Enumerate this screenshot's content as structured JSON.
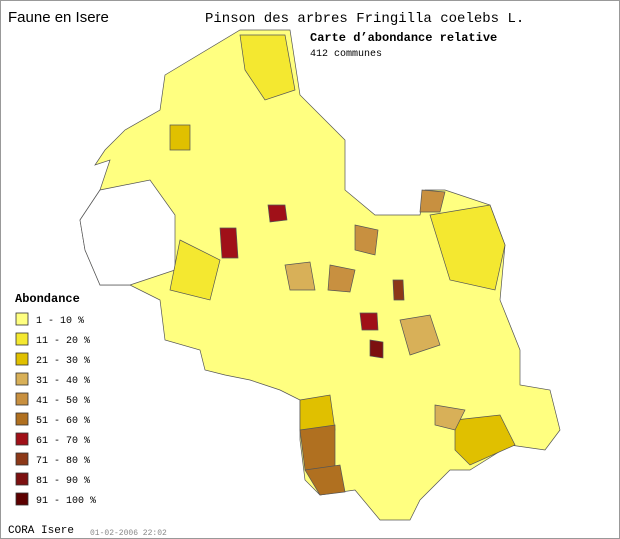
{
  "header": {
    "site": "Faune en Isere",
    "species": "Pinson des arbres  Fringilla coelebs L.",
    "map_title": "Carte d’abondance relative",
    "count": "412 communes"
  },
  "legend": {
    "title": "Abondance",
    "items": [
      {
        "label": "1 - 10 %",
        "color": "#ffff80"
      },
      {
        "label": "11 - 20 %",
        "color": "#f4e830"
      },
      {
        "label": "21 - 30 %",
        "color": "#e0c000"
      },
      {
        "label": "31 - 40 %",
        "color": "#d8b058"
      },
      {
        "label": "41 - 50 %",
        "color": "#c89040"
      },
      {
        "label": "51 - 60 %",
        "color": "#b07020"
      },
      {
        "label": "61 - 70 %",
        "color": "#a01018"
      },
      {
        "label": "71 - 80 %",
        "color": "#8c3818"
      },
      {
        "label": "81 - 90 %",
        "color": "#7c1010"
      },
      {
        "label": "91 - 100 %",
        "color": "#5c0000"
      }
    ]
  },
  "footer": {
    "source": "CORA Isere",
    "date": "01-02-2006 22:02"
  }
}
